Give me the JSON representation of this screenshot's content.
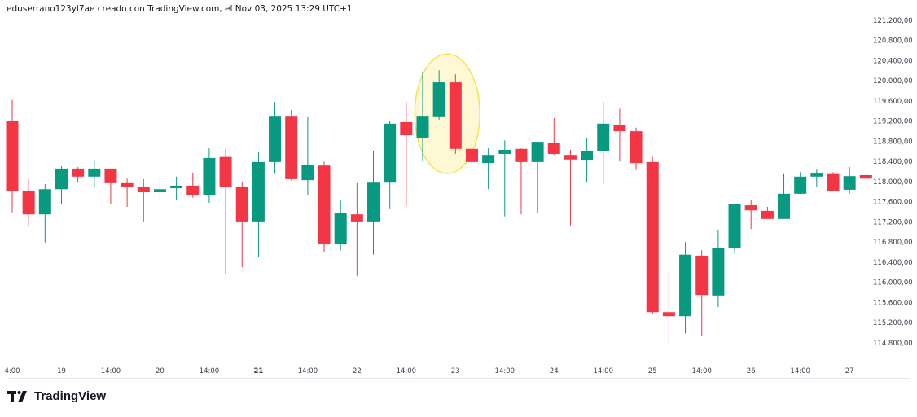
{
  "attribution": "eduserrano123yl7ae creado con TradingView.com, el Nov 03, 2025 13:29 UTC+1",
  "brand": {
    "name": "TradingView",
    "logo_icon": "tradingview-logo-icon"
  },
  "colors": {
    "up": "#089981",
    "down": "#f23645",
    "highlight_fill": "#fff8d4",
    "highlight_stroke": "#f7e24a"
  },
  "chart_data": {
    "type": "candlestick",
    "title": "",
    "xlabel": "",
    "ylabel": "",
    "ylim": [
      114550,
      121300
    ],
    "grid": false,
    "y_ticks": [
      121200,
      120800,
      120400,
      120000,
      119600,
      119200,
      118800,
      118400,
      118000,
      117600,
      117200,
      116800,
      116400,
      116000,
      115600,
      115200,
      114800
    ],
    "y_tick_labels": [
      "121.200,00",
      "120.800,00",
      "120.400,00",
      "120.000,00",
      "119.600,00",
      "119.200,00",
      "118.800,00",
      "118.400,00",
      "118.000,00",
      "117.600,00",
      "117.200,00",
      "116.800,00",
      "116.400,00",
      "116.000,00",
      "115.600,00",
      "115.200,00",
      "114.800,00"
    ],
    "x_tick_labels": [
      "4:00",
      "19",
      "14:00",
      "20",
      "14:00",
      "21",
      "14:00",
      "22",
      "14:00",
      "23",
      "14:00",
      "24",
      "14:00",
      "25",
      "14:00",
      "26",
      "14:00",
      "27"
    ],
    "x_tick_candle_every": 3,
    "highlight": {
      "shape": "ellipse",
      "candles": [
        26,
        27
      ]
    },
    "candles": [
      {
        "o": 119210,
        "h": 119620,
        "l": 117390,
        "c": 117820
      },
      {
        "o": 117820,
        "h": 118050,
        "l": 117130,
        "c": 117350
      },
      {
        "o": 117350,
        "h": 117950,
        "l": 116790,
        "c": 117850
      },
      {
        "o": 117850,
        "h": 118310,
        "l": 117550,
        "c": 118260
      },
      {
        "o": 118260,
        "h": 118290,
        "l": 117980,
        "c": 118100
      },
      {
        "o": 118100,
        "h": 118420,
        "l": 117870,
        "c": 118260
      },
      {
        "o": 118260,
        "h": 118260,
        "l": 117560,
        "c": 117970
      },
      {
        "o": 117970,
        "h": 118060,
        "l": 117500,
        "c": 117900
      },
      {
        "o": 117900,
        "h": 118050,
        "l": 117210,
        "c": 117790
      },
      {
        "o": 117790,
        "h": 118100,
        "l": 117600,
        "c": 117850
      },
      {
        "o": 117870,
        "h": 118100,
        "l": 117640,
        "c": 117920
      },
      {
        "o": 117920,
        "h": 118180,
        "l": 117680,
        "c": 117740
      },
      {
        "o": 117740,
        "h": 118660,
        "l": 117580,
        "c": 118470
      },
      {
        "o": 118490,
        "h": 118650,
        "l": 116170,
        "c": 117900
      },
      {
        "o": 117890,
        "h": 118000,
        "l": 116300,
        "c": 117210
      },
      {
        "o": 117210,
        "h": 118580,
        "l": 116510,
        "c": 118390
      },
      {
        "o": 118390,
        "h": 119580,
        "l": 118160,
        "c": 119290
      },
      {
        "o": 119290,
        "h": 119420,
        "l": 118030,
        "c": 118050
      },
      {
        "o": 118030,
        "h": 119280,
        "l": 117730,
        "c": 118340
      },
      {
        "o": 118320,
        "h": 118400,
        "l": 116610,
        "c": 116760
      },
      {
        "o": 116760,
        "h": 117630,
        "l": 116630,
        "c": 117370
      },
      {
        "o": 117350,
        "h": 117970,
        "l": 116130,
        "c": 117210
      },
      {
        "o": 117210,
        "h": 118610,
        "l": 116550,
        "c": 117980
      },
      {
        "o": 117980,
        "h": 119200,
        "l": 117470,
        "c": 119150
      },
      {
        "o": 119180,
        "h": 119580,
        "l": 117520,
        "c": 118920
      },
      {
        "o": 118870,
        "h": 120170,
        "l": 118400,
        "c": 119290
      },
      {
        "o": 119280,
        "h": 120210,
        "l": 119230,
        "c": 119970
      },
      {
        "o": 119970,
        "h": 120130,
        "l": 118550,
        "c": 118650
      },
      {
        "o": 118650,
        "h": 119050,
        "l": 118320,
        "c": 118390
      },
      {
        "o": 118370,
        "h": 118660,
        "l": 117850,
        "c": 118530
      },
      {
        "o": 118550,
        "h": 118820,
        "l": 117310,
        "c": 118630
      },
      {
        "o": 118650,
        "h": 118660,
        "l": 117350,
        "c": 118390
      },
      {
        "o": 118390,
        "h": 118790,
        "l": 117370,
        "c": 118790
      },
      {
        "o": 118760,
        "h": 119260,
        "l": 118530,
        "c": 118550
      },
      {
        "o": 118530,
        "h": 118630,
        "l": 117130,
        "c": 118440
      },
      {
        "o": 118420,
        "h": 118870,
        "l": 117980,
        "c": 118610
      },
      {
        "o": 118610,
        "h": 119580,
        "l": 117950,
        "c": 119150
      },
      {
        "o": 119130,
        "h": 119450,
        "l": 118400,
        "c": 119000
      },
      {
        "o": 119000,
        "h": 119070,
        "l": 118230,
        "c": 118370
      },
      {
        "o": 118390,
        "h": 118490,
        "l": 115380,
        "c": 115410
      },
      {
        "o": 115410,
        "h": 116170,
        "l": 114750,
        "c": 115330
      },
      {
        "o": 115330,
        "h": 116800,
        "l": 114990,
        "c": 116550
      },
      {
        "o": 116530,
        "h": 116640,
        "l": 114930,
        "c": 115750
      },
      {
        "o": 115740,
        "h": 117030,
        "l": 115510,
        "c": 116690
      },
      {
        "o": 116680,
        "h": 117550,
        "l": 116580,
        "c": 117550
      },
      {
        "o": 117530,
        "h": 117640,
        "l": 117060,
        "c": 117430
      },
      {
        "o": 117420,
        "h": 117500,
        "l": 117260,
        "c": 117260
      },
      {
        "o": 117260,
        "h": 118150,
        "l": 117260,
        "c": 117760
      },
      {
        "o": 117760,
        "h": 118190,
        "l": 117760,
        "c": 118100
      },
      {
        "o": 118100,
        "h": 118240,
        "l": 117900,
        "c": 118160
      },
      {
        "o": 118150,
        "h": 118190,
        "l": 117820,
        "c": 117820
      },
      {
        "o": 117840,
        "h": 118290,
        "l": 117760,
        "c": 118110
      },
      {
        "o": 118130,
        "h": 118130,
        "l": 118060,
        "c": 118060
      }
    ]
  }
}
